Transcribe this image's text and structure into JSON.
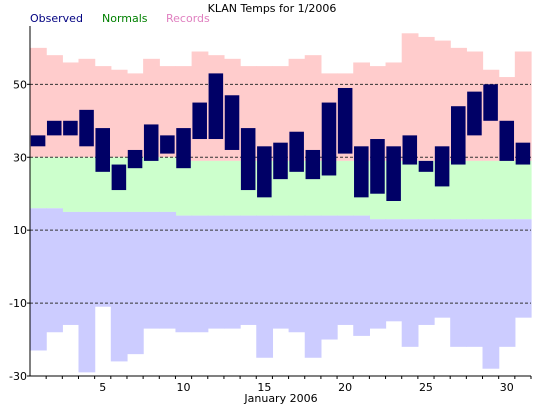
{
  "chart_data": {
    "type": "bar",
    "title": "KLAN Temps for 1/2006",
    "xlabel": "January 2006",
    "ylabel": "",
    "xlim": [
      0.5,
      31.5
    ],
    "ylim": [
      -30,
      66
    ],
    "y_ticks": [
      50,
      30,
      10,
      -10,
      -30
    ],
    "y_tick_labels": [
      "50",
      "30",
      "10",
      "-10",
      "-30"
    ],
    "x_ticks": [
      5,
      10,
      15,
      20,
      25,
      30
    ],
    "x_tick_labels": [
      "5",
      "10",
      "15",
      "20",
      "25",
      "30"
    ],
    "grid": "dashed horizontal lines at y ticks",
    "legend": {
      "placement": "top-left",
      "items": [
        {
          "label": "Observed",
          "color": "#000080"
        },
        {
          "label": "Normals",
          "color": "#008000"
        },
        {
          "label": "Records",
          "color": "#e080c0"
        }
      ]
    },
    "colors": {
      "observed": "#000066",
      "normal_band": "#ccffcc",
      "record_high_band": "#ffcccc",
      "record_low_band": "#ccccff",
      "grid": "#333333"
    },
    "days": [
      1,
      2,
      3,
      4,
      5,
      6,
      7,
      8,
      9,
      10,
      11,
      12,
      13,
      14,
      15,
      16,
      17,
      18,
      19,
      20,
      21,
      22,
      23,
      24,
      25,
      26,
      27,
      28,
      29,
      30,
      31
    ],
    "series": [
      {
        "name": "Record High",
        "values": [
          60,
          58,
          56,
          57,
          55,
          54,
          53,
          57,
          55,
          55,
          59,
          58,
          57,
          55,
          55,
          55,
          57,
          58,
          53,
          53,
          56,
          55,
          56,
          64,
          63,
          62,
          60,
          59,
          54,
          52,
          59
        ]
      },
      {
        "name": "Normal High",
        "values": [
          30,
          30,
          30,
          30,
          30,
          30,
          30,
          30,
          30,
          29,
          29,
          29,
          29,
          29,
          29,
          29,
          29,
          29,
          29,
          29,
          29,
          29,
          29,
          29,
          29,
          29,
          29,
          29,
          29,
          29,
          29
        ]
      },
      {
        "name": "Normal Low",
        "values": [
          16,
          16,
          15,
          15,
          15,
          15,
          15,
          15,
          15,
          14,
          14,
          14,
          14,
          14,
          14,
          14,
          14,
          14,
          14,
          14,
          14,
          13,
          13,
          13,
          13,
          13,
          13,
          13,
          13,
          13,
          13
        ]
      },
      {
        "name": "Record Low",
        "values": [
          -23,
          -18,
          -16,
          -29,
          -11,
          -26,
          -24,
          -17,
          -17,
          -18,
          -18,
          -17,
          -17,
          -16,
          -25,
          -17,
          -18,
          -25,
          -20,
          -16,
          -19,
          -17,
          -15,
          -22,
          -16,
          -14,
          -22,
          -22,
          -28,
          -22,
          -14
        ]
      },
      {
        "name": "Observed High",
        "values": [
          36,
          40,
          40,
          43,
          38,
          28,
          32,
          39,
          36,
          38,
          45,
          53,
          47,
          38,
          33,
          34,
          37,
          32,
          45,
          49,
          33,
          35,
          33,
          36,
          29,
          33,
          44,
          48,
          50,
          40,
          34
        ]
      },
      {
        "name": "Observed Low",
        "values": [
          33,
          36,
          36,
          33,
          26,
          21,
          27,
          29,
          31,
          27,
          35,
          35,
          32,
          21,
          19,
          24,
          26,
          24,
          25,
          31,
          19,
          20,
          18,
          28,
          26,
          22,
          28,
          36,
          40,
          29,
          28
        ]
      }
    ]
  }
}
